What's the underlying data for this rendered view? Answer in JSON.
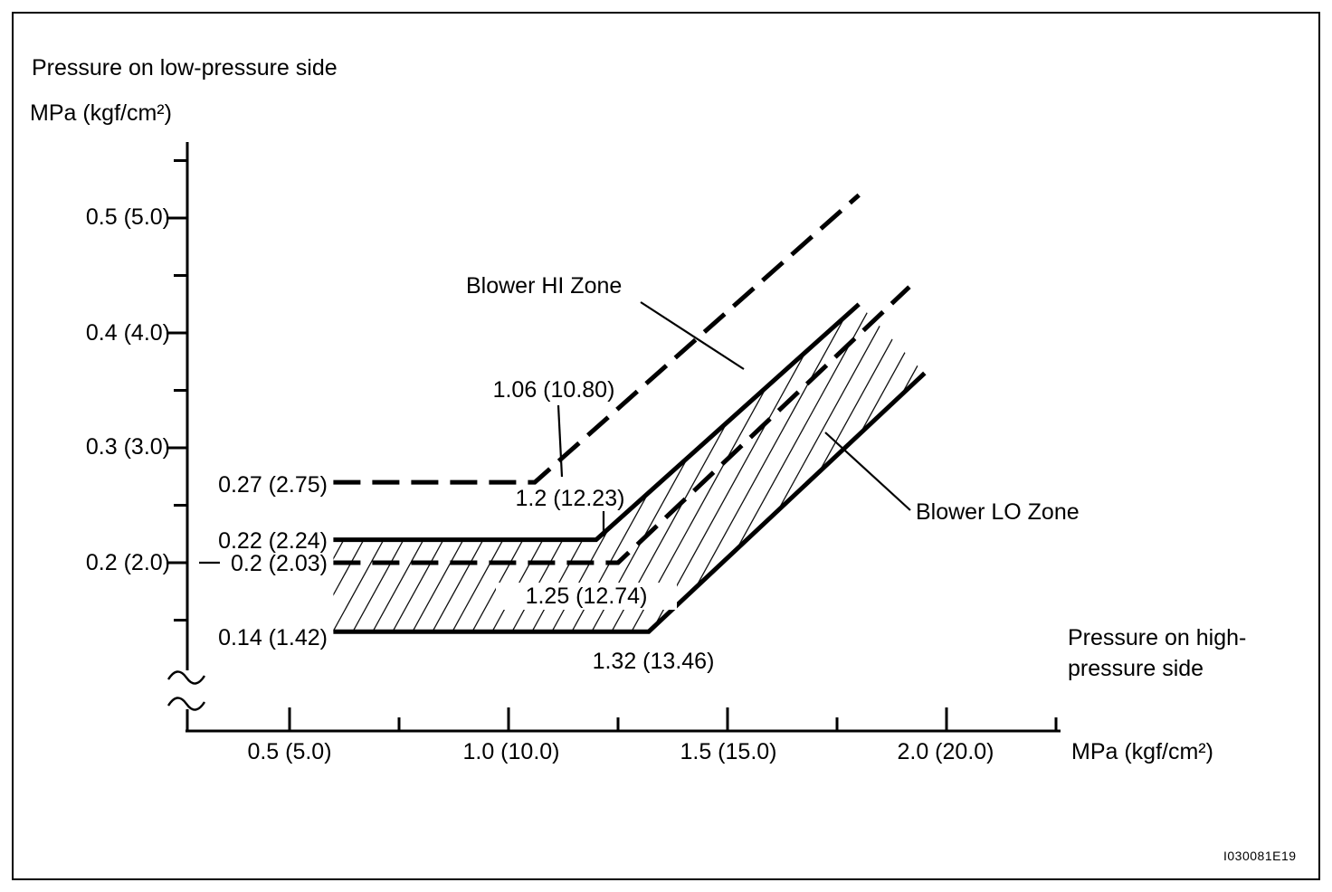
{
  "figure": {
    "id": "I030081E19"
  },
  "y_axis": {
    "title_line1": "Pressure on low-pressure side",
    "title_line2": "MPa (kgf/cm²)",
    "tick_labels": [
      "0.5 (5.0)",
      "0.4 (4.0)",
      "0.3 (3.0)",
      "0.2 (2.0)"
    ]
  },
  "x_axis": {
    "tick_labels": [
      "0.5 (5.0)",
      "1.0 (10.0)",
      "1.5 (15.0)",
      "2.0 (20.0)"
    ],
    "unit_label": "MPa (kgf/cm²)",
    "side_label_line1": "Pressure on high-",
    "side_label_line2": "pressure side"
  },
  "annotations": {
    "hi_zone": "Blower HI Zone",
    "lo_zone": "Blower LO Zone",
    "hi_upper_low_side": "0.27 (2.75)",
    "lo_upper_low_side": "0.22 (2.24)",
    "hi_lower_low_side": "0.2 (2.03)",
    "lo_lower_low_side": "0.14 (1.42)",
    "hi_upper_corner_high_side": "1.06 (10.80)",
    "lo_upper_corner_high_side": "1.2 (12.23)",
    "hi_lower_corner_high_side": "1.25 (12.74)",
    "lo_lower_corner_high_side": "1.32 (13.46)"
  },
  "chart_data": {
    "type": "line",
    "title": "",
    "xlabel": "Pressure on high-pressure side MPa (kgf/cm²)",
    "ylabel": "Pressure on low-pressure side MPa (kgf/cm²)",
    "xlim": [
      0.3,
      2.35
    ],
    "ylim": [
      0.08,
      0.57
    ],
    "grid": false,
    "legend_position": "none",
    "x_ticks": {
      "major": [
        0.5,
        1.0,
        1.5,
        2.0
      ],
      "minor": [
        0.75,
        1.25,
        1.75,
        2.25
      ]
    },
    "y_ticks": {
      "major": [
        0.5,
        0.4,
        0.3,
        0.2
      ],
      "minor": [
        0.55,
        0.45,
        0.35,
        0.25,
        0.15
      ]
    },
    "series": [
      {
        "name": "Blower HI Zone upper boundary",
        "style": "dashed",
        "flat_level_label": "0.27 (2.75)",
        "corner_label": "1.06 (10.80)",
        "points": [
          [
            0.6,
            0.27
          ],
          [
            1.06,
            0.27
          ],
          [
            1.8,
            0.52
          ]
        ]
      },
      {
        "name": "Blower LO Zone upper boundary",
        "style": "solid",
        "flat_level_label": "0.22 (2.24)",
        "corner_label": "1.2 (12.23)",
        "points": [
          [
            0.6,
            0.22
          ],
          [
            1.2,
            0.22
          ],
          [
            1.8,
            0.425
          ]
        ]
      },
      {
        "name": "Blower HI Zone lower boundary",
        "style": "dashed",
        "flat_level_label": "0.2 (2.03)",
        "corner_label": "1.25 (12.74)",
        "points": [
          [
            0.6,
            0.2
          ],
          [
            1.25,
            0.2
          ],
          [
            1.915,
            0.44
          ]
        ]
      },
      {
        "name": "Blower LO Zone lower boundary",
        "style": "solid",
        "flat_level_label": "0.14 (1.42)",
        "corner_label": "1.32 (13.46)",
        "points": [
          [
            0.6,
            0.14
          ],
          [
            1.32,
            0.14
          ],
          [
            1.95,
            0.365
          ]
        ]
      }
    ],
    "hatched_area": "between the two solid Blower LO Zone boundaries"
  }
}
